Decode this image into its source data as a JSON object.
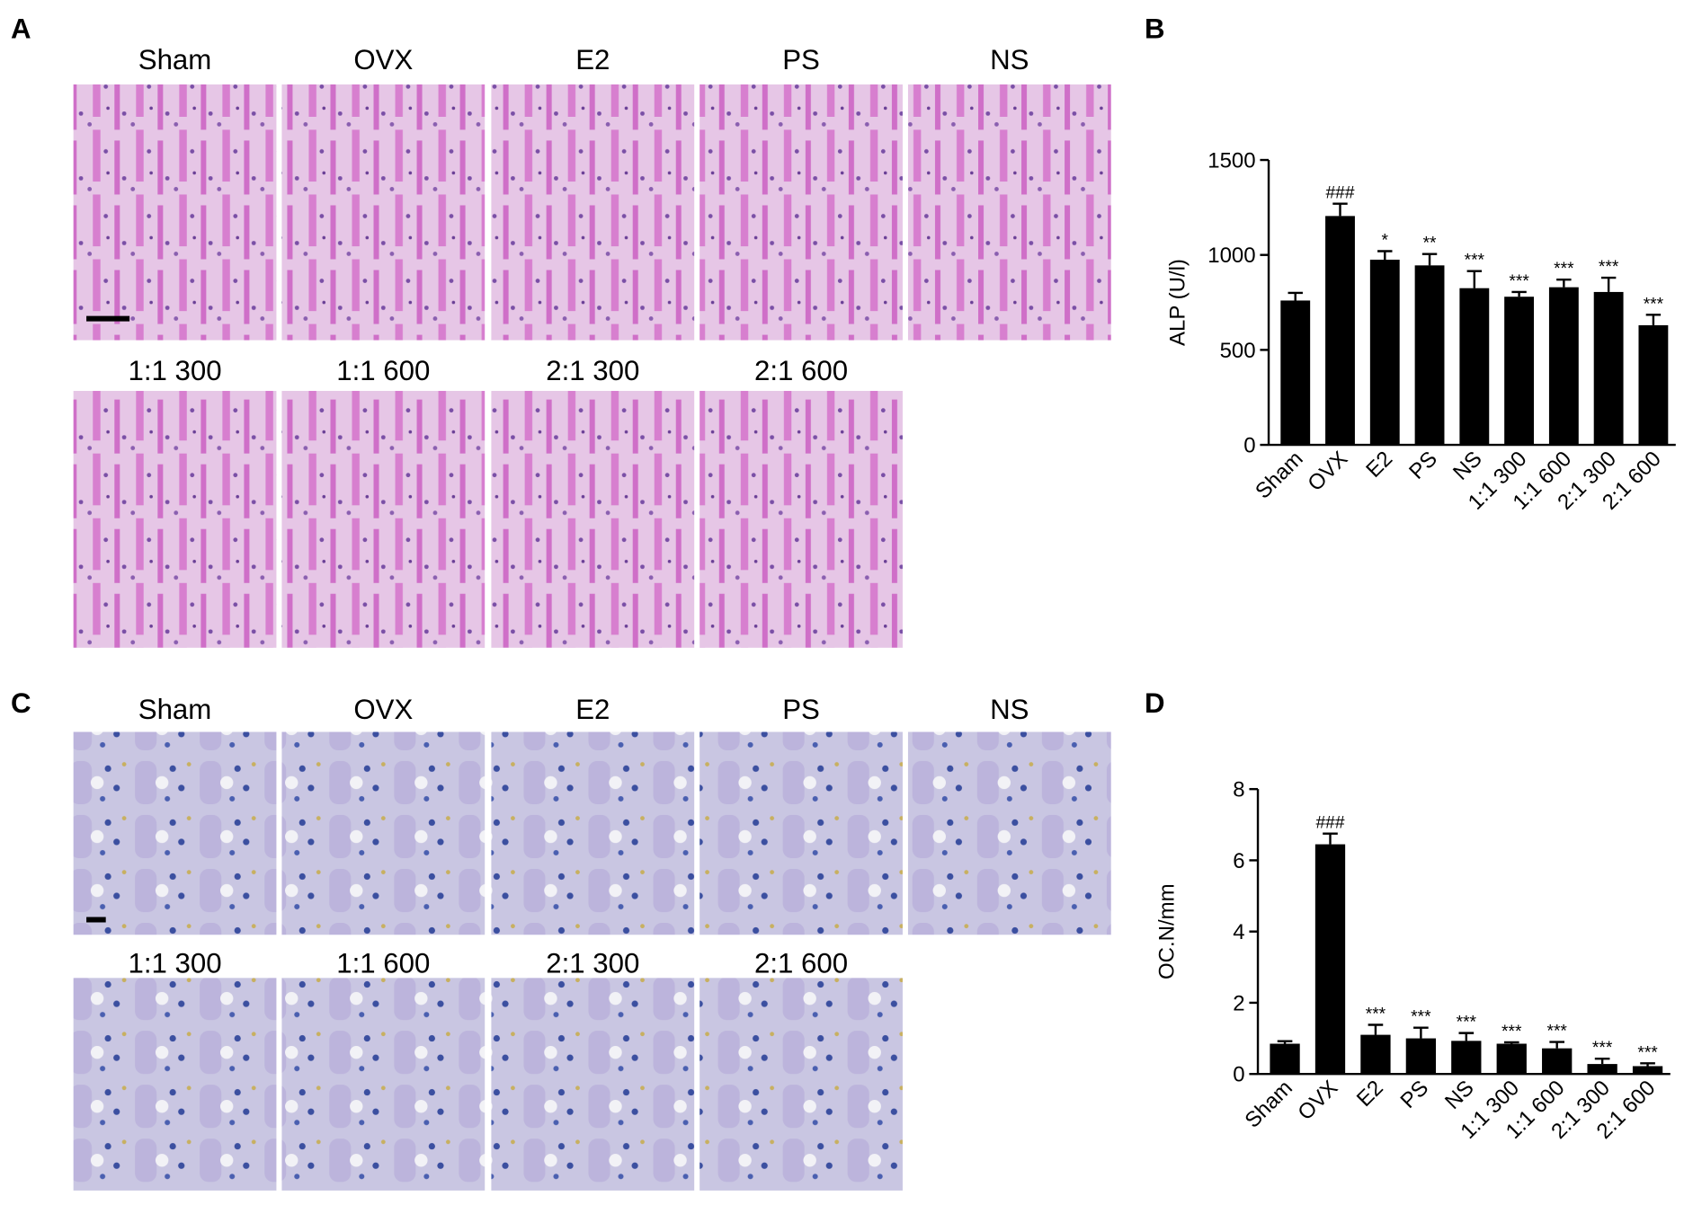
{
  "panels": [
    {
      "label": "A",
      "titles": [
        "Sham",
        "OVX",
        "E2",
        "PS",
        "NS",
        "1:1 300",
        "1:1 600",
        "2:1 300",
        "2:1 600"
      ]
    },
    {
      "label": "C",
      "titles": [
        "Sham",
        "OVX",
        "E2",
        "PS",
        "NS",
        "1:1 300",
        "1:1 600",
        "2:1 300",
        "2:1 600"
      ]
    }
  ],
  "chart_data": [
    {
      "type": "bar",
      "panel_label": "B",
      "y_label": "ALP (U/l)",
      "color": "#000000",
      "categories": [
        "Sham",
        "OVX",
        "E2",
        "PS",
        "NS",
        "1:1 300",
        "1:1 600",
        "2:1 300",
        "2:1 600"
      ],
      "values": [
        760,
        1205,
        975,
        945,
        825,
        780,
        830,
        805,
        630
      ],
      "errors": [
        40,
        65,
        45,
        60,
        90,
        25,
        40,
        75,
        55
      ],
      "annotations": [
        null,
        "###",
        "*",
        "**",
        "***",
        "***",
        "***",
        "***",
        "***"
      ],
      "ylim": [
        0,
        1500
      ],
      "yticks": [
        0,
        500,
        1000,
        1500
      ]
    },
    {
      "type": "bar",
      "panel_label": "D",
      "y_label": "OC.N/mm",
      "color": "#000000",
      "categories": [
        "Sham",
        "OVX",
        "E2",
        "PS",
        "NS",
        "1:1 300",
        "1:1 600",
        "2:1 300",
        "2:1 600"
      ],
      "values": [
        0.85,
        6.45,
        1.1,
        1.0,
        0.93,
        0.85,
        0.72,
        0.28,
        0.22
      ],
      "errors": [
        0.07,
        0.3,
        0.28,
        0.3,
        0.22,
        0.04,
        0.18,
        0.15,
        0.08
      ],
      "annotations": [
        null,
        "###",
        "***",
        "***",
        "***",
        "***",
        "***",
        "***",
        "***"
      ],
      "ylim": [
        0,
        8
      ],
      "yticks": [
        0,
        2,
        4,
        6,
        8
      ]
    }
  ]
}
